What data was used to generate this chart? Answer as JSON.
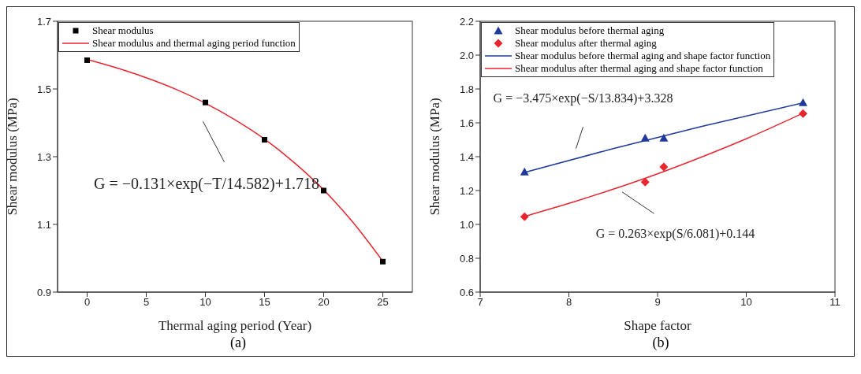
{
  "chart_data": [
    {
      "type": "scatter",
      "xlabel": "Thermal aging period (Year)",
      "ylabel": "Shear modulus (MPa)",
      "xlim": [
        -2.5,
        27.5
      ],
      "xticks": [
        0,
        5,
        10,
        15,
        20,
        25
      ],
      "ylim": [
        0.9,
        1.7
      ],
      "yticks": [
        0.9,
        1.1,
        1.3,
        1.5,
        1.7
      ],
      "legend": "top left",
      "grid": false,
      "series": [
        {
          "name": "Shear modulus",
          "marker": "square",
          "color": "#000000",
          "x": [
            0,
            10,
            15,
            20,
            25
          ],
          "values": [
            1.585,
            1.46,
            1.35,
            1.2,
            0.99
          ]
        },
        {
          "name": "Shear modulus and thermal aging period function",
          "type": "line",
          "marker": "none",
          "color": "#e8262f",
          "x": [
            0,
            2.5,
            5,
            7.5,
            10,
            12.5,
            15,
            17.5,
            20,
            22.5,
            25
          ],
          "values": [
            1.587,
            1.562,
            1.533,
            1.499,
            1.458,
            1.409,
            1.352,
            1.283,
            1.202,
            1.105,
            0.991
          ]
        }
      ],
      "annotations": [
        "G = −0.131×exp(−T/14.582)+1.718",
        "(a)"
      ]
    },
    {
      "type": "scatter",
      "xlabel": "Shape factor",
      "ylabel": "Shear modulus (MPa)",
      "xlim": [
        7,
        11
      ],
      "xticks": [
        7,
        8,
        9,
        10,
        11
      ],
      "ylim": [
        0.6,
        2.2
      ],
      "yticks": [
        0.6,
        0.8,
        {
          "value": 1,
          "label": "1.0"
        },
        1.2,
        1.4,
        1.6,
        1.8,
        {
          "value": 2,
          "label": "2.0"
        },
        2.2
      ],
      "legend": "top left",
      "grid": false,
      "series": [
        {
          "name": "Shear modulus before thermal aging",
          "marker": "triangle",
          "color": "#1f3a9c",
          "x": [
            7.5,
            8.86,
            9.07,
            10.64
          ],
          "values": [
            1.31,
            1.51,
            1.51,
            1.72
          ]
        },
        {
          "name": "Shear modulus after thermal aging",
          "marker": "diamond",
          "color": "#e8262f",
          "x": [
            7.5,
            8.86,
            9.07,
            10.64
          ],
          "values": [
            1.045,
            1.25,
            1.34,
            1.655
          ]
        },
        {
          "name": "Shear modulus before thermal aging and shape factor function",
          "type": "line",
          "marker": "none",
          "color": "#1f3a9c",
          "x": [
            7.5,
            8.5,
            9.5,
            10.64
          ],
          "values": [
            1.307,
            1.448,
            1.579,
            1.718
          ]
        },
        {
          "name": "Shear modulus after thermal aging and shape factor function",
          "type": "line",
          "marker": "none",
          "color": "#e8262f",
          "x": [
            7.5,
            8,
            8.5,
            9,
            9.5,
            10,
            10.64
          ],
          "values": [
            1.047,
            1.124,
            1.208,
            1.299,
            1.399,
            1.506,
            1.657
          ]
        }
      ],
      "annotations": [
        "G = −3.475×exp(−S/13.834)+3.328",
        "G = 0.263×exp(S/6.081)+0.144",
        "(b)"
      ]
    }
  ]
}
